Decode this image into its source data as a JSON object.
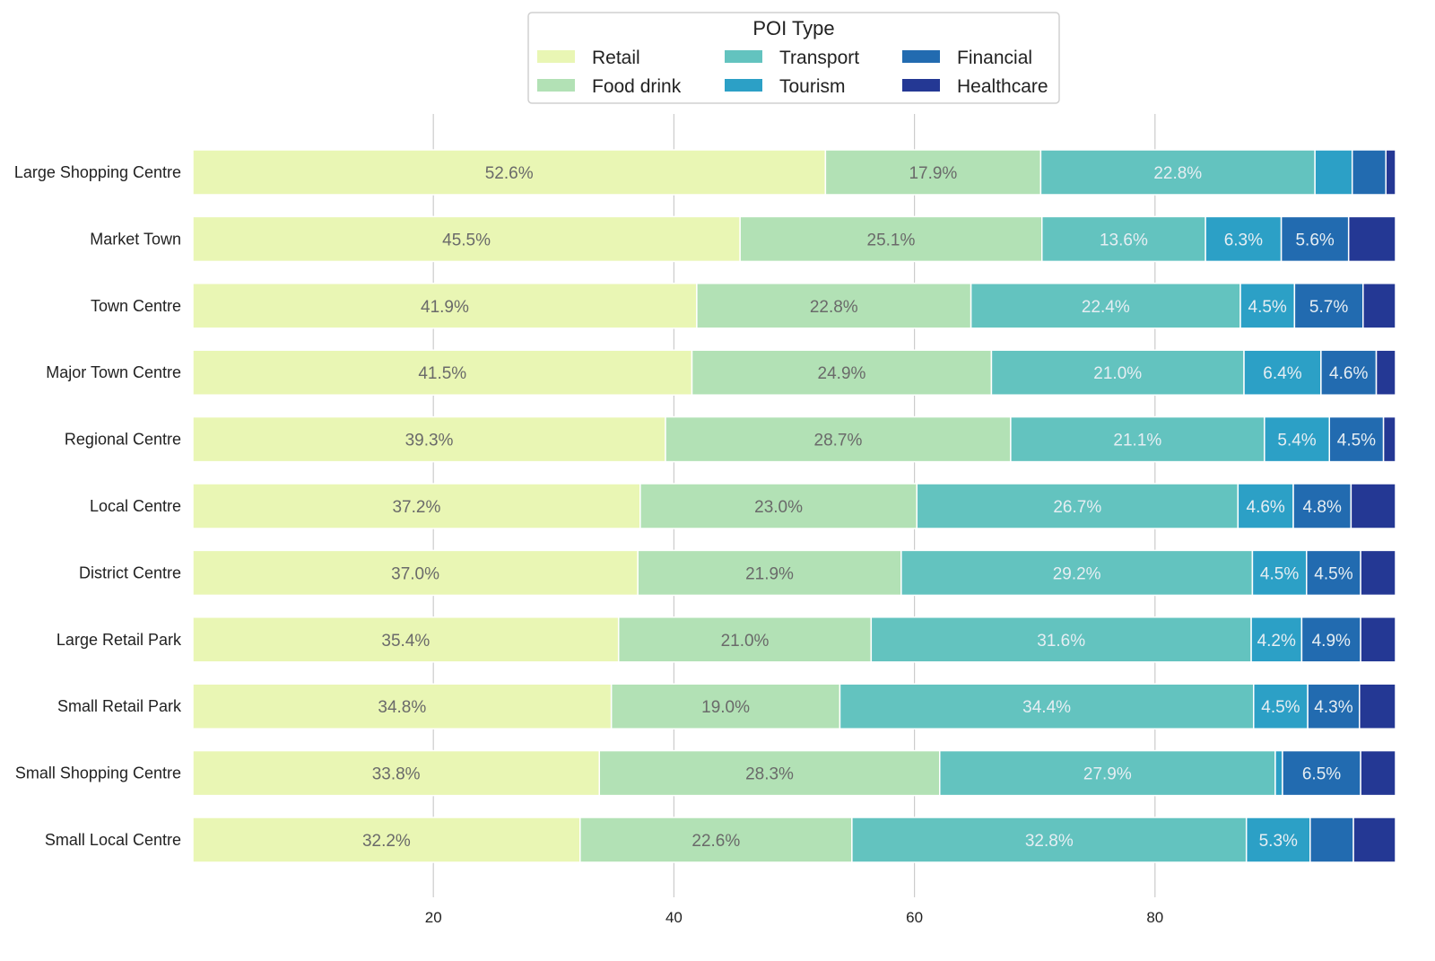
{
  "chart_data": {
    "type": "bar",
    "orientation": "horizontal",
    "stacked": true,
    "title": "",
    "xlabel": "",
    "ylabel": "",
    "xlim": [
      0,
      100
    ],
    "xticks": [
      20,
      40,
      60,
      80
    ],
    "grid": "vertical",
    "legend": {
      "title": "POI Type",
      "placement": "top-center",
      "columns": 3
    },
    "categories": [
      "Large Shopping Centre",
      "Market Town",
      "Town Centre",
      "Major Town Centre",
      "Regional Centre",
      "Local Centre",
      "District Centre",
      "Large Retail Park",
      "Small Retail Park",
      "Small Shopping Centre",
      "Small Local Centre"
    ],
    "series": [
      {
        "name": "Retail",
        "color": "#e9f6b4",
        "values": [
          52.6,
          45.5,
          41.9,
          41.5,
          39.3,
          37.2,
          37.0,
          35.4,
          34.8,
          33.8,
          32.2
        ]
      },
      {
        "name": "Food drink",
        "color": "#b2e1b5",
        "values": [
          17.9,
          25.1,
          22.8,
          24.9,
          28.7,
          23.0,
          21.9,
          21.0,
          19.0,
          28.3,
          22.6
        ]
      },
      {
        "name": "Transport",
        "color": "#63c3bf",
        "values": [
          22.8,
          13.6,
          22.4,
          21.0,
          21.1,
          26.7,
          29.2,
          31.6,
          34.4,
          27.9,
          32.8
        ]
      },
      {
        "name": "Tourism",
        "color": "#2ca0c6",
        "values": [
          3.1,
          6.3,
          4.5,
          6.4,
          5.4,
          4.6,
          4.5,
          4.2,
          4.5,
          0.6,
          5.3
        ]
      },
      {
        "name": "Financial",
        "color": "#226bb0",
        "values": [
          2.8,
          5.6,
          5.7,
          4.6,
          4.5,
          4.8,
          4.5,
          4.9,
          4.3,
          6.5,
          3.6
        ]
      },
      {
        "name": "Healthcare",
        "color": "#243894",
        "values": [
          0.8,
          3.9,
          2.7,
          1.6,
          1.0,
          3.7,
          2.9,
          2.9,
          3.0,
          2.9,
          3.5
        ]
      }
    ]
  }
}
